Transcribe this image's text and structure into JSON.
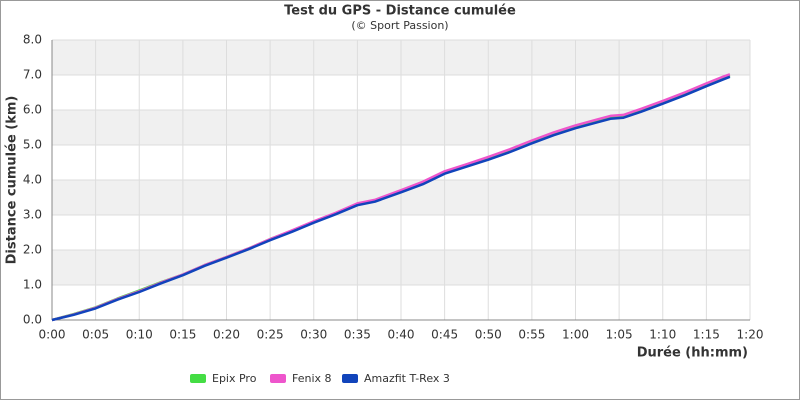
{
  "chart_data": {
    "type": "line",
    "title": "Test du GPS - Distance cumulée",
    "subtitle": "(© Sport Passion)",
    "x_label": "Durée (hh:mm)",
    "y_label": "Distance cumulée (km)",
    "xlim": [
      0,
      80
    ],
    "xticks": [
      {
        "value": 0,
        "label": "0:00"
      },
      {
        "value": 5,
        "label": "0:05"
      },
      {
        "value": 10,
        "label": "0:10"
      },
      {
        "value": 15,
        "label": "0:15"
      },
      {
        "value": 20,
        "label": "0:20"
      },
      {
        "value": 25,
        "label": "0:25"
      },
      {
        "value": 30,
        "label": "0:30"
      },
      {
        "value": 35,
        "label": "0:35"
      },
      {
        "value": 40,
        "label": "0:40"
      },
      {
        "value": 45,
        "label": "0:45"
      },
      {
        "value": 50,
        "label": "0:50"
      },
      {
        "value": 55,
        "label": "0:55"
      },
      {
        "value": 60,
        "label": "1:00"
      },
      {
        "value": 65,
        "label": "1:05"
      },
      {
        "value": 70,
        "label": "1:10"
      },
      {
        "value": 75,
        "label": "1:15"
      },
      {
        "value": 80,
        "label": "1:20"
      }
    ],
    "ylim": [
      0,
      8
    ],
    "yticks": [
      {
        "value": 0,
        "label": "0.0"
      },
      {
        "value": 1,
        "label": "1.0"
      },
      {
        "value": 2,
        "label": "2.0"
      },
      {
        "value": 3,
        "label": "3.0"
      },
      {
        "value": 4,
        "label": "4.0"
      },
      {
        "value": 5,
        "label": "5.0"
      },
      {
        "value": 6,
        "label": "6.0"
      },
      {
        "value": 7,
        "label": "7.0"
      },
      {
        "value": 8,
        "label": "8.0"
      }
    ],
    "grid": true,
    "x": [
      0,
      2.5,
      5,
      7.5,
      10,
      12.5,
      15,
      17.5,
      20,
      22.5,
      25,
      27.5,
      30,
      32.5,
      35,
      37,
      40,
      42.5,
      45,
      47.5,
      50,
      52.5,
      55,
      57.5,
      60,
      62.5,
      64,
      65.5,
      67.5,
      70,
      72.5,
      75,
      77,
      77.7
    ],
    "series": [
      {
        "name": "Epix Pro",
        "color": "#44dd44",
        "values": [
          0,
          0.17,
          0.36,
          0.61,
          0.84,
          1.08,
          1.3,
          1.57,
          1.8,
          2.04,
          2.31,
          2.55,
          2.81,
          3.05,
          3.31,
          3.41,
          3.69,
          3.92,
          4.22,
          4.42,
          4.62,
          4.84,
          5.09,
          5.32,
          5.52,
          5.69,
          5.79,
          5.82,
          5.99,
          6.22,
          6.46,
          6.72,
          6.92,
          6.99
        ]
      },
      {
        "name": "Fenix 8",
        "color": "#ee55cc",
        "values": [
          0,
          0.16,
          0.35,
          0.6,
          0.82,
          1.07,
          1.3,
          1.57,
          1.8,
          2.04,
          2.31,
          2.56,
          2.82,
          3.06,
          3.33,
          3.43,
          3.71,
          3.95,
          4.25,
          4.45,
          4.66,
          4.88,
          5.13,
          5.36,
          5.56,
          5.73,
          5.83,
          5.86,
          6.03,
          6.26,
          6.5,
          6.76,
          6.96,
          7.02
        ]
      },
      {
        "name": "Amazfit T-Rex 3",
        "color": "#1144bb",
        "values": [
          0,
          0.15,
          0.33,
          0.58,
          0.8,
          1.05,
          1.28,
          1.55,
          1.78,
          2.02,
          2.28,
          2.52,
          2.78,
          3.02,
          3.28,
          3.38,
          3.65,
          3.88,
          4.18,
          4.38,
          4.58,
          4.8,
          5.05,
          5.28,
          5.48,
          5.65,
          5.75,
          5.78,
          5.95,
          6.18,
          6.42,
          6.68,
          6.88,
          6.95
        ]
      }
    ]
  }
}
